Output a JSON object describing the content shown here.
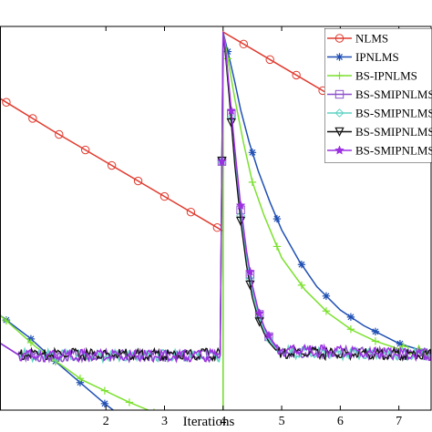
{
  "chart_data": {
    "type": "line",
    "xlabel": "Iterations",
    "ylabel": "",
    "title": "",
    "x_ticks": [
      "2",
      "3",
      "4",
      "5",
      "6",
      "7"
    ],
    "xlim": [
      0.2,
      7.55
    ],
    "ylim": [
      -34,
      0.5
    ],
    "grid": false,
    "legend_position": "top-right",
    "series": [
      {
        "name": "NLMS",
        "color": "#e03a2e",
        "marker": "circle",
        "x": [
          0.2,
          1.1,
          2.1,
          3.1,
          4.0,
          4.0,
          5.0,
          6.0,
          7.55
        ],
        "y": [
          -6.0,
          -8.9,
          -12.0,
          -15.1,
          -17.9,
          0.0,
          -3.1,
          -6.2,
          -11.0
        ]
      },
      {
        "name": "IPNLMS",
        "color": "#1f4fb4",
        "marker": "star",
        "x": [
          0.2,
          0.7,
          1.2,
          2.0,
          2.5,
          4.0,
          4.0,
          4.1,
          4.2,
          4.3,
          4.45,
          4.6,
          4.8,
          5.0,
          5.3,
          5.6,
          6.0,
          6.4,
          7.0,
          7.55
        ],
        "y": [
          -25.5,
          -27.5,
          -29.9,
          -33.5,
          -35.5,
          -35.5,
          0.0,
          -2.2,
          -4.5,
          -7.0,
          -10.0,
          -12.5,
          -15.3,
          -17.8,
          -20.6,
          -22.9,
          -25.0,
          -26.4,
          -28.0,
          -28.9
        ]
      },
      {
        "name": "BS-IPNLMS",
        "color": "#7be12e",
        "marker": "plus",
        "x": [
          0.2,
          0.8,
          1.6,
          2.4,
          3.0,
          4.0,
          4.0,
          4.1,
          4.2,
          4.35,
          4.5,
          4.7,
          5.0,
          5.4,
          5.8,
          6.2,
          6.6,
          7.0,
          7.55
        ],
        "y": [
          -25.5,
          -28.3,
          -31.3,
          -33.3,
          -34.6,
          -35.0,
          0.0,
          -3.0,
          -6.0,
          -10.0,
          -13.5,
          -16.5,
          -20.3,
          -23.2,
          -25.3,
          -26.8,
          -27.8,
          -28.5,
          -28.9
        ]
      },
      {
        "name": "BS-SMIPNLMS",
        "color": "#8b4fc9",
        "marker": "square",
        "x": [
          0.2,
          0.5,
          0.9,
          3.95,
          4.0,
          4.05,
          4.1,
          4.2,
          4.3,
          4.4,
          4.5,
          4.6,
          4.7,
          4.8,
          4.9,
          5.0,
          7.55
        ],
        "y": [
          -28.0,
          -29.0,
          -29.1,
          -29.1,
          0.0,
          -2.2,
          -5.0,
          -11.0,
          -16.0,
          -20.0,
          -23.0,
          -25.1,
          -26.6,
          -27.6,
          -28.3,
          -28.7,
          -29.0
        ]
      },
      {
        "name": "BS-SMIPNLMS",
        "color": "#5fd4c4",
        "marker": "diamond",
        "x": [
          0.2,
          0.5,
          0.9,
          3.95,
          4.0,
          4.05,
          4.1,
          4.2,
          4.3,
          4.4,
          4.5,
          4.6,
          4.7,
          4.8,
          4.9,
          5.0,
          7.55
        ],
        "y": [
          -28.0,
          -29.0,
          -29.1,
          -29.1,
          0.0,
          -2.4,
          -5.2,
          -11.4,
          -16.5,
          -20.4,
          -23.4,
          -25.4,
          -26.8,
          -27.8,
          -28.5,
          -28.8,
          -29.0
        ]
      },
      {
        "name": "BS-SMIPNLMS",
        "color": "#111111",
        "marker": "triangle-down",
        "x": [
          0.2,
          0.5,
          0.9,
          3.95,
          4.0,
          4.05,
          4.1,
          4.2,
          4.3,
          4.4,
          4.5,
          4.6,
          4.7,
          4.8,
          4.9,
          5.0,
          7.55
        ],
        "y": [
          -28.0,
          -29.0,
          -29.0,
          -29.0,
          0.0,
          -2.6,
          -5.6,
          -12.0,
          -17.0,
          -21.0,
          -23.9,
          -25.8,
          -27.1,
          -28.0,
          -28.6,
          -28.9,
          -29.0
        ]
      },
      {
        "name": "BS-SMIPNLMS",
        "color": "#9b30e0",
        "marker": "star5",
        "x": [
          0.2,
          0.5,
          0.9,
          3.95,
          4.0,
          4.05,
          4.1,
          4.2,
          4.3,
          4.4,
          4.5,
          4.6,
          4.7,
          4.8,
          4.9,
          5.0,
          7.55
        ],
        "y": [
          -28.0,
          -29.0,
          -29.1,
          -29.1,
          0.0,
          -2.0,
          -4.8,
          -10.5,
          -15.6,
          -19.7,
          -22.8,
          -25.0,
          -26.5,
          -27.5,
          -28.2,
          -28.6,
          -29.0
        ]
      }
    ]
  }
}
